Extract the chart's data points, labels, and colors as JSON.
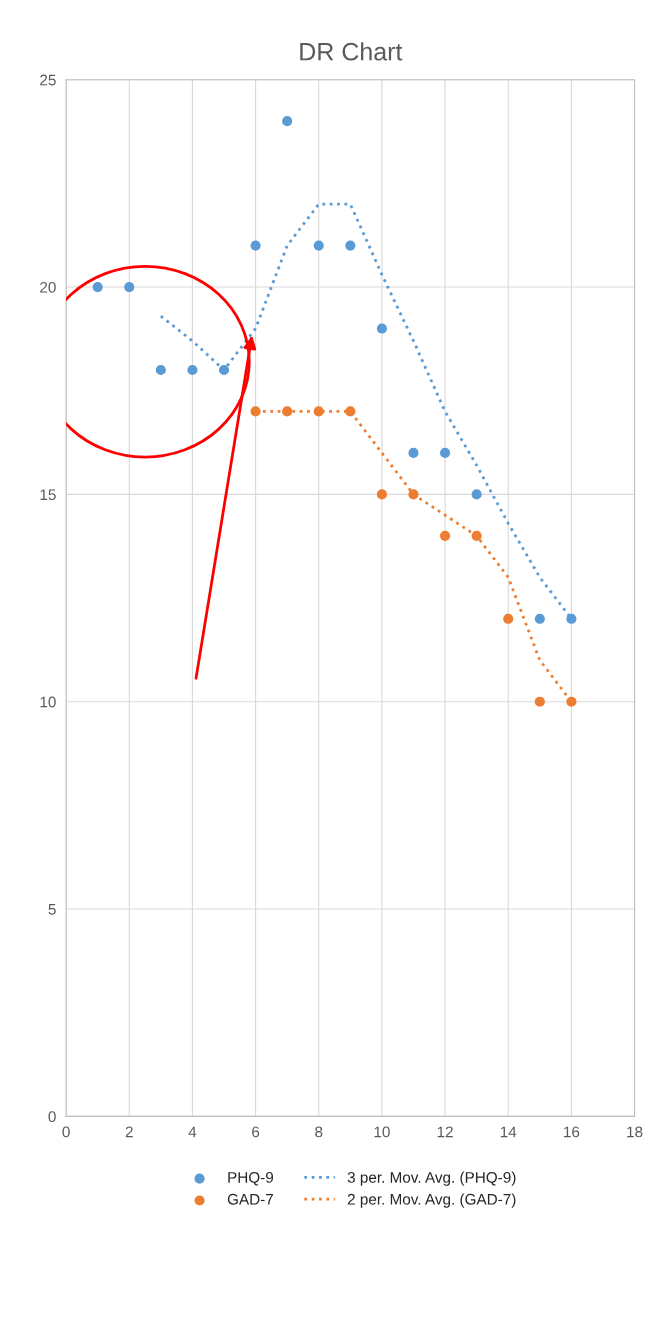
{
  "chart_data": {
    "type": "scatter",
    "title": "DR Chart",
    "series": [
      {
        "name": "PHQ-9",
        "color": "#5b9bd5",
        "marker": "circle",
        "x": [
          1,
          2,
          3,
          4,
          5,
          6,
          7,
          8,
          9,
          10,
          11,
          12,
          13,
          14,
          15,
          16
        ],
        "values": [
          20,
          20,
          18,
          18,
          18,
          21,
          24,
          21,
          21,
          19,
          16,
          16,
          15,
          null,
          12,
          12
        ]
      },
      {
        "name": "GAD-7",
        "color": "#ed7d31",
        "marker": "circle",
        "x": [
          6,
          7,
          8,
          9,
          10,
          11,
          12,
          13,
          14,
          15,
          16
        ],
        "values": [
          17,
          17,
          17,
          17,
          15,
          15,
          14,
          14,
          12,
          10,
          10
        ]
      },
      {
        "name": "3 per. Mov. Avg. (PHQ-9)",
        "type": "line",
        "color": "#5b9bd5",
        "line_style": "dotted",
        "x": [
          3,
          4,
          5,
          6,
          7,
          8,
          9,
          10,
          11,
          12,
          13,
          14,
          15,
          16
        ],
        "values": [
          19.3,
          18.7,
          18,
          19,
          21,
          22,
          22,
          20.3,
          18.7,
          17,
          15.7,
          14.3,
          13,
          12
        ]
      },
      {
        "name": "2 per. Mov. Avg. (GAD-7)",
        "type": "line",
        "color": "#ed7d31",
        "line_style": "dotted",
        "x": [
          6,
          7,
          8,
          9,
          10,
          11,
          12,
          13,
          14,
          15,
          16
        ],
        "values": [
          17,
          17,
          17,
          17,
          16,
          15,
          14.5,
          14,
          13,
          11,
          10
        ]
      }
    ],
    "xlim": [
      0,
      18
    ],
    "xticks": [
      0,
      2,
      4,
      6,
      8,
      10,
      12,
      14,
      16,
      18
    ],
    "ylim": [
      0,
      25
    ],
    "yticks": [
      0,
      5,
      10,
      15,
      20,
      25
    ],
    "grid": true,
    "legend": "bottom"
  }
}
